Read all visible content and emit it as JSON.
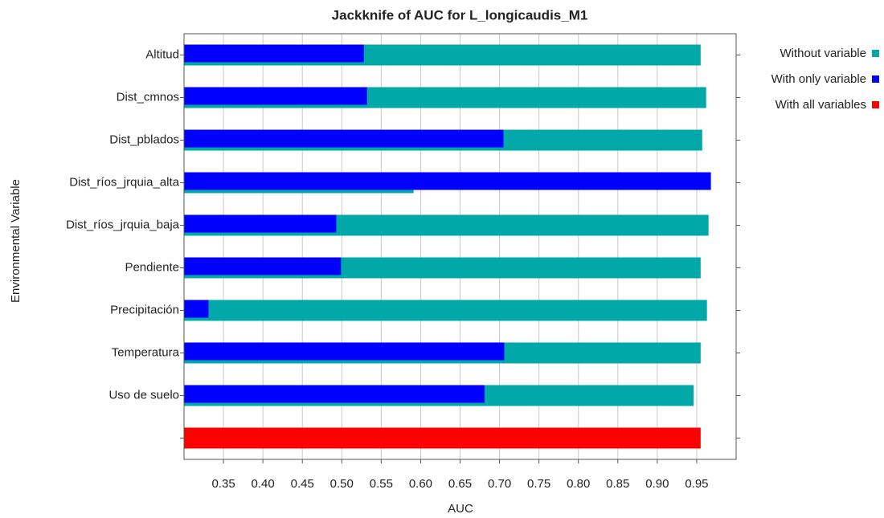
{
  "chart_data": {
    "type": "bar",
    "orientation": "horizontal",
    "title": "Jackknife of AUC for L_longicaudis_M1",
    "x_label": "AUC",
    "y_label": "Environmental Variable",
    "categories": [
      "Altitud",
      "Dist_cmnos",
      "Dist_pblados",
      "Dist_ríos_jrquia_alta",
      "Dist_ríos_jrquia_baja",
      "Pendiente",
      "Precipitación",
      "Temperatura",
      "Uso de suelo",
      null
    ],
    "series": [
      {
        "name": "Without variable",
        "color": "#00a8a8",
        "values": [
          0.955,
          0.962,
          0.957,
          0.591,
          0.965,
          0.955,
          0.963,
          0.955,
          0.946,
          null
        ]
      },
      {
        "name": "With only variable",
        "color": "#0000ff",
        "values": [
          0.528,
          0.532,
          0.705,
          0.968,
          0.493,
          0.499,
          0.331,
          0.706,
          0.681,
          null
        ]
      },
      {
        "name": "With all variables",
        "color": "#ff0000",
        "values": [
          null,
          null,
          null,
          null,
          null,
          null,
          null,
          null,
          null,
          0.955
        ]
      }
    ],
    "xlim": [
      0.3,
      1.0
    ],
    "xticks": [
      0.35,
      {
        "value": 0.4,
        "label": "0.40"
      },
      0.45,
      {
        "value": 0.5,
        "label": "0.50"
      },
      0.55,
      {
        "value": 0.6,
        "label": "0.60"
      },
      0.65,
      {
        "value": 0.7,
        "label": "0.70"
      },
      0.75,
      {
        "value": 0.8,
        "label": "0.80"
      },
      0.85,
      {
        "value": 0.9,
        "label": "0.90"
      },
      0.95
    ],
    "grid": true,
    "legend": "top-right"
  }
}
